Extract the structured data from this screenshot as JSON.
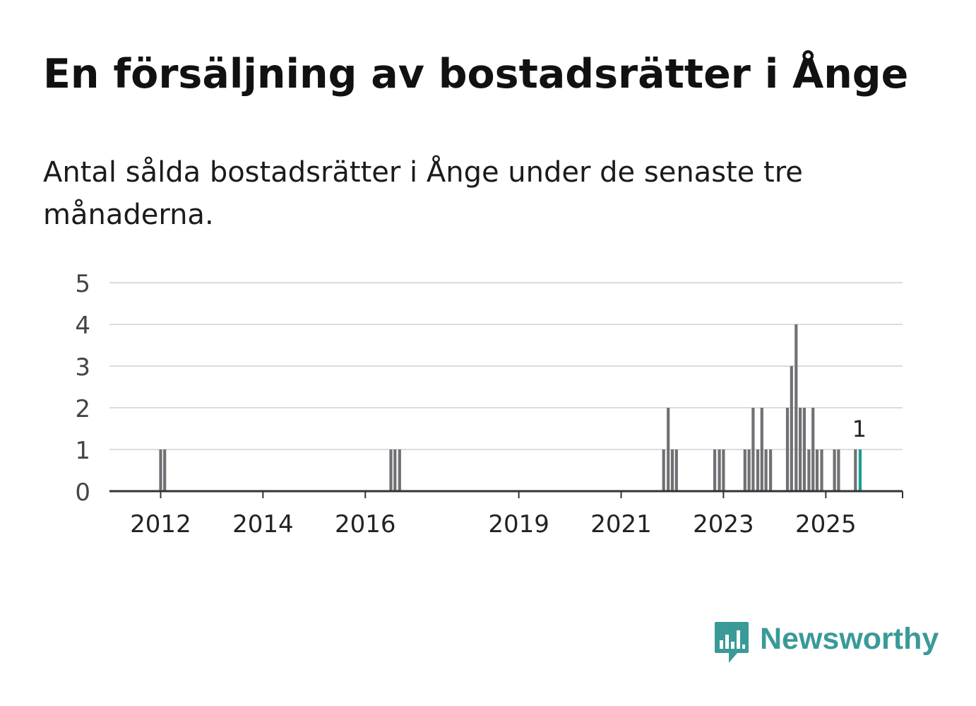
{
  "header": {
    "title": "En försäljning av bostadsrätter i Ånge",
    "subtitle": "Antal sålda bostadsrätter i Ånge under de senaste tre månaderna."
  },
  "chart_data": {
    "type": "bar",
    "title": "En försäljning av bostadsrätter i Ånge",
    "subtitle": "Antal sålda bostadsrätter i Ånge under de senaste tre månaderna.",
    "xlabel": "",
    "ylabel": "",
    "ylim": [
      0,
      5
    ],
    "yticks": [
      0,
      1,
      2,
      3,
      4,
      5
    ],
    "x_range": [
      2011.0,
      2026.5
    ],
    "xticks": [
      2012,
      2014,
      2016,
      2019,
      2021,
      2023,
      2025
    ],
    "grid": true,
    "x": [
      2012.0,
      2012.08,
      2016.5,
      2016.58,
      2016.67,
      2021.83,
      2021.92,
      2022.0,
      2022.08,
      2022.83,
      2022.92,
      2023.0,
      2023.42,
      2023.5,
      2023.58,
      2023.67,
      2023.75,
      2023.83,
      2023.92,
      2024.25,
      2024.33,
      2024.42,
      2024.5,
      2024.58,
      2024.67,
      2024.75,
      2024.83,
      2024.92,
      2025.0,
      2025.17,
      2025.25,
      2025.58,
      2025.67
    ],
    "values": [
      1,
      1,
      1,
      1,
      1,
      1,
      2,
      1,
      1,
      1,
      1,
      1,
      1,
      1,
      2,
      1,
      2,
      1,
      1,
      2,
      3,
      4,
      2,
      2,
      1,
      2,
      1,
      1,
      0,
      1,
      1,
      1,
      1
    ],
    "highlight_index": 32,
    "annotation": {
      "label": "1"
    },
    "colors": {
      "bar": "#707075",
      "highlight": "#1a9c94",
      "grid": "#dcdcdc",
      "axis": "#333333",
      "tick_text": "#444444"
    }
  },
  "brand": {
    "name": "Newsworthy",
    "icon": "newsworthy-chart-bubble-icon",
    "color": "#3a9a98"
  }
}
